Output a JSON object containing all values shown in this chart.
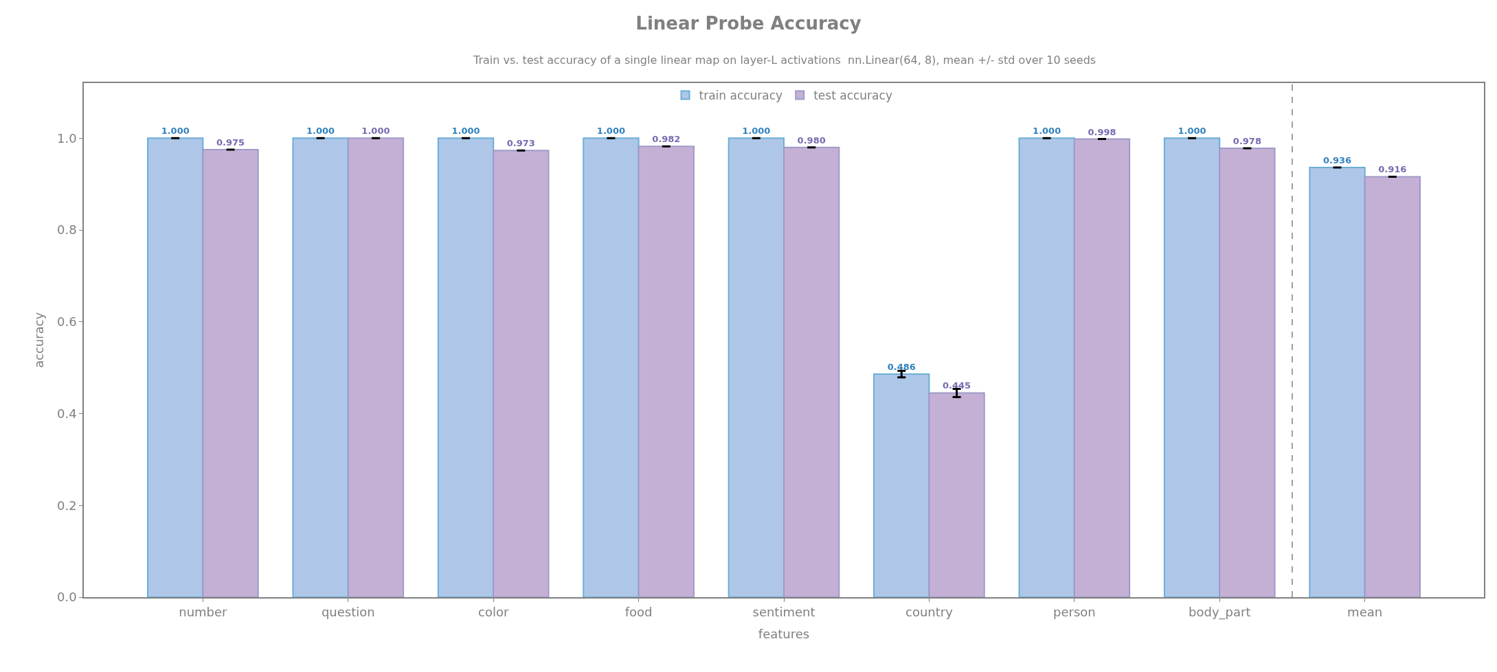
{
  "chart_data": {
    "type": "bar",
    "title": "Linear Probe Accuracy",
    "subtitle": "Train vs. test accuracy of a single linear map on layer-L activations  nn.Linear(64, 8), mean +/- std over 10 seeds",
    "xlabel": "features",
    "ylabel": "accuracy",
    "categories": [
      "number",
      "question",
      "color",
      "food",
      "sentiment",
      "country",
      "person",
      "body_part",
      "mean"
    ],
    "series": [
      {
        "name": "train accuracy",
        "color": "#aec7e8",
        "values": [
          1.0,
          1.0,
          1.0,
          1.0,
          1.0,
          0.486,
          1.0,
          1.0,
          0.936
        ],
        "errors": [
          0,
          0,
          0,
          0,
          0,
          0.007,
          0,
          0,
          0
        ],
        "value_labels": [
          "1.000",
          "1.000",
          "1.000",
          "1.000",
          "1.000",
          "0.486",
          "1.000",
          "1.000",
          "0.936"
        ]
      },
      {
        "name": "test accuracy",
        "color": "#c5b0d5",
        "values": [
          0.975,
          1.0,
          0.973,
          0.982,
          0.98,
          0.445,
          0.998,
          0.978,
          0.916
        ],
        "errors": [
          0,
          0,
          0,
          0,
          0,
          0.009,
          0,
          0,
          0
        ],
        "value_labels": [
          "0.975",
          "1.000",
          "0.973",
          "0.982",
          "0.980",
          "0.445",
          "0.998",
          "0.978",
          "0.916"
        ]
      }
    ],
    "ylim": [
      0,
      1.12
    ],
    "yticks": [
      {
        "value": 0,
        "label": "0.0"
      },
      {
        "value": 0.2,
        "label": "0.2"
      },
      {
        "value": 0.4,
        "label": "0.4"
      },
      {
        "value": 0.6,
        "label": "0.6"
      },
      {
        "value": 0.8,
        "label": "0.8"
      },
      {
        "value": 1.0,
        "label": "1.0"
      }
    ],
    "legend": "top"
  }
}
